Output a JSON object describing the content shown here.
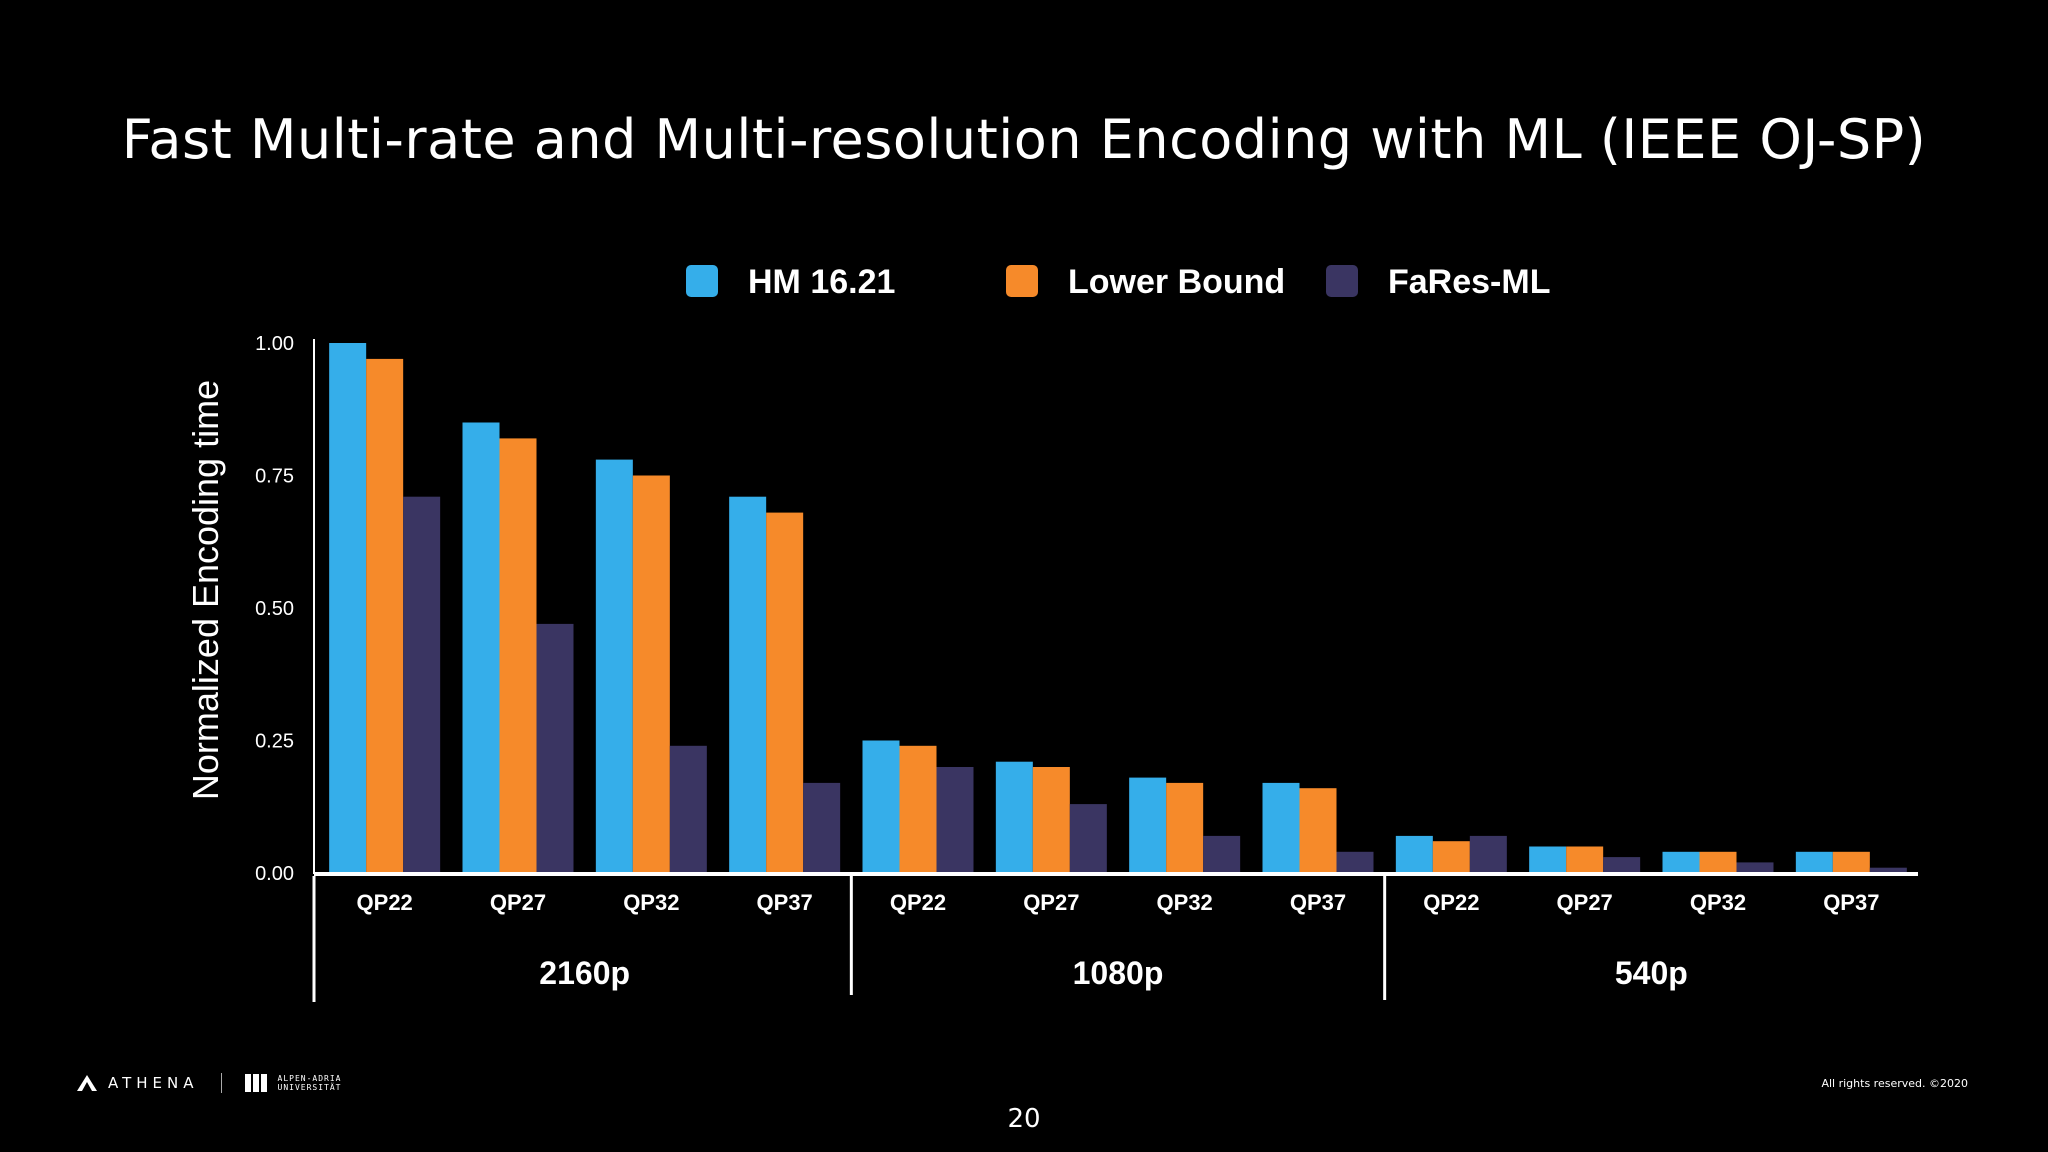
{
  "slide": {
    "title": "Fast Multi-rate and Multi-resolution Encoding with ML (IEEE OJ-SP)",
    "page_number": "20",
    "copyright": "All rights reserved. ©2020",
    "logo_text": "ATHENA",
    "university_text_line1": "ALPEN-ADRIA",
    "university_text_line2": "UNIVERSITÄT"
  },
  "chart_data": {
    "type": "bar",
    "title": "",
    "xlabel": "",
    "ylabel": "Normalized Encoding time",
    "ylim": [
      0,
      1
    ],
    "yticks": [
      "0.00",
      "0.25",
      "0.50",
      "0.75",
      "1.00"
    ],
    "legend_position": "top",
    "groups": [
      "2160p",
      "1080p",
      "540p"
    ],
    "categories": [
      "QP22",
      "QP27",
      "QP32",
      "QP37",
      "QP22",
      "QP27",
      "QP32",
      "QP37",
      "QP22",
      "QP27",
      "QP32",
      "QP37"
    ],
    "series": [
      {
        "name": "HM 16.21",
        "color": "#35aeea",
        "values": [
          1.0,
          0.85,
          0.78,
          0.71,
          0.25,
          0.21,
          0.18,
          0.17,
          0.07,
          0.05,
          0.04,
          0.04
        ]
      },
      {
        "name": "Lower Bound",
        "color": "#f68a2a",
        "values": [
          0.97,
          0.82,
          0.75,
          0.68,
          0.24,
          0.2,
          0.17,
          0.16,
          0.06,
          0.05,
          0.04,
          0.04
        ]
      },
      {
        "name": "FaRes-ML",
        "color": "#3a3562",
        "values": [
          0.71,
          0.47,
          0.24,
          0.17,
          0.2,
          0.13,
          0.07,
          0.04,
          0.07,
          0.03,
          0.02,
          0.01
        ]
      }
    ],
    "grid": false
  }
}
